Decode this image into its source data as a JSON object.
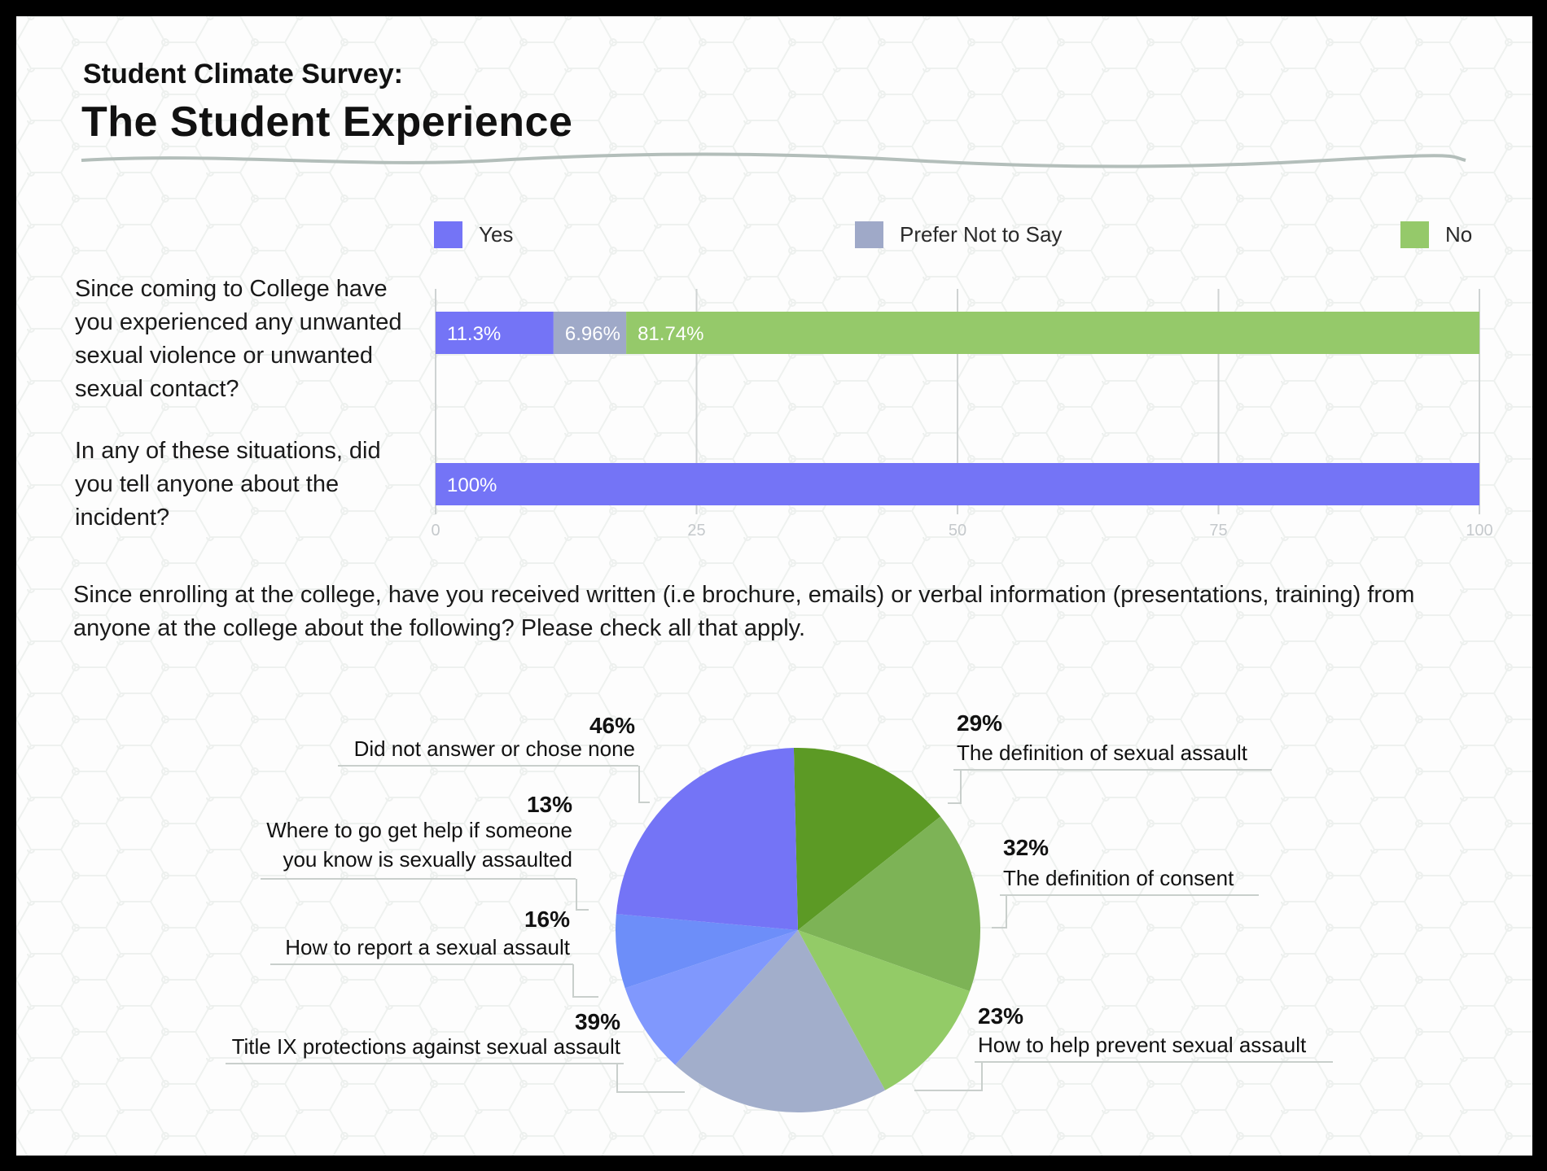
{
  "header": {
    "supertitle": "Student Climate Survey:",
    "title": "The Student Experience"
  },
  "colors": {
    "yes": "#7474f6",
    "prefer_not": "#9fa9c8",
    "no": "#95c96a",
    "grid": "#cfd3d3",
    "divider": "#aebab5"
  },
  "chart_data": [
    {
      "type": "bar",
      "orientation": "horizontal",
      "stacked": true,
      "categories": [
        "Since coming to College have you experienced any unwanted sexual violence or unwanted sexual contact?",
        "In any of these situations, did you tell anyone about the incident?"
      ],
      "series": [
        {
          "name": "Yes",
          "values": [
            11.3,
            100
          ],
          "labels": [
            "11.3%",
            "100%"
          ],
          "color": "#7474f6"
        },
        {
          "name": "Prefer Not to Say",
          "values": [
            6.96,
            0
          ],
          "labels": [
            "6.96%",
            ""
          ],
          "color": "#9fa9c8"
        },
        {
          "name": "No",
          "values": [
            81.74,
            0
          ],
          "labels": [
            "81.74%",
            ""
          ],
          "color": "#95c96a"
        }
      ],
      "xlim": [
        0,
        100
      ],
      "ticks": [
        "0",
        "25",
        "50",
        "75",
        "100"
      ],
      "grid": true,
      "legend": "top"
    },
    {
      "type": "pie",
      "title": "Since enrolling at the college, have you received written (i.e brochure, emails) or verbal information (presentations, training) from anyone at the college about the following? Please check all that apply.",
      "slices": [
        {
          "label": "The definition of sexual assault",
          "value": 29,
          "text": "29%",
          "color": "#5c9a25"
        },
        {
          "label": "The definition of consent",
          "value": 32,
          "text": "32%",
          "color": "#7db356"
        },
        {
          "label": "How to help prevent sexual assault",
          "value": 23,
          "text": "23%",
          "color": "#93cb67"
        },
        {
          "label": "Title IX protections against sexual assault",
          "value": 39,
          "text": "39%",
          "color": "#a2aecb"
        },
        {
          "label": "How to report a sexual assault",
          "value": 16,
          "text": "16%",
          "color": "#8098fd"
        },
        {
          "label": "Where to go get help if someone you know is sexually assaulted",
          "value": 13,
          "text": "13%",
          "color": "#6d8ef9"
        },
        {
          "label": "Did not answer or chose none",
          "value": 46,
          "text": "46%",
          "color": "#7474f6"
        }
      ]
    }
  ],
  "pie_label_lines": {
    "Where to go get help if someone you know is sexually assaulted": [
      "Where to go get help if someone",
      "you know is sexually assaulted"
    ]
  }
}
